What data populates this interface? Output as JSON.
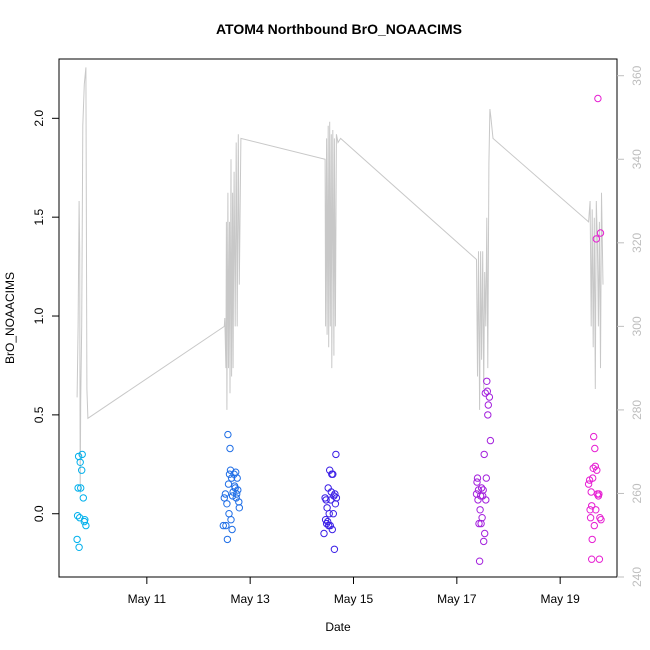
{
  "chart_data": {
    "type": "scatter",
    "title": "ATOM4 Northbound BrO_NOAACIMS",
    "xlabel": "Date",
    "ylabel": "BrO_NOAACIMS",
    "x_unit": "days since May 0 (May 10 = 10.0)",
    "xlim": [
      9.3,
      20.1
    ],
    "ylim": [
      -0.32,
      2.3
    ],
    "y2lim": [
      240,
      364
    ],
    "x_ticks": [
      {
        "value": 11,
        "label": "May 11"
      },
      {
        "value": 13,
        "label": "May 13"
      },
      {
        "value": 15,
        "label": "May 15"
      },
      {
        "value": 17,
        "label": "May 17"
      },
      {
        "value": 19,
        "label": "May 19"
      }
    ],
    "y_ticks": [
      {
        "value": 0.0,
        "label": "0.0"
      },
      {
        "value": 0.5,
        "label": "0.5"
      },
      {
        "value": 1.0,
        "label": "1.0"
      },
      {
        "value": 1.5,
        "label": "1.5"
      },
      {
        "value": 2.0,
        "label": "2.0"
      }
    ],
    "y2_ticks": [
      {
        "value": 240,
        "label": "240"
      },
      {
        "value": 260,
        "label": "260"
      },
      {
        "value": 280,
        "label": "280"
      },
      {
        "value": 300,
        "label": "300"
      },
      {
        "value": 320,
        "label": "320"
      },
      {
        "value": 340,
        "label": "340"
      },
      {
        "value": 360,
        "label": "360"
      }
    ],
    "colors": {
      "series_line": "#c8c8c8",
      "right_axis": "#bebebe",
      "axis": "#000000"
    },
    "series": [
      {
        "name": "BrO_NOAACIMS",
        "axis": "left",
        "style": "points",
        "points": [
          {
            "x": 9.65,
            "y": -0.13,
            "color": "#00b0ec"
          },
          {
            "x": 9.66,
            "y": -0.01,
            "color": "#00b0ec"
          },
          {
            "x": 9.67,
            "y": 0.13,
            "color": "#00b0ec"
          },
          {
            "x": 9.68,
            "y": 0.29,
            "color": "#00b0ec"
          },
          {
            "x": 9.69,
            "y": -0.17,
            "color": "#00b0ec"
          },
          {
            "x": 9.7,
            "y": -0.02,
            "color": "#00b0ec"
          },
          {
            "x": 9.71,
            "y": 0.26,
            "color": "#00b0ec"
          },
          {
            "x": 9.72,
            "y": 0.13,
            "color": "#00b0ec"
          },
          {
            "x": 9.74,
            "y": 0.22,
            "color": "#00b0ec"
          },
          {
            "x": 9.75,
            "y": 0.3,
            "color": "#00b0ec"
          },
          {
            "x": 9.77,
            "y": 0.08,
            "color": "#00b0ec"
          },
          {
            "x": 9.79,
            "y": -0.04,
            "color": "#00b0ec"
          },
          {
            "x": 9.8,
            "y": -0.03,
            "color": "#00b0ec"
          },
          {
            "x": 9.82,
            "y": -0.06,
            "color": "#00b0ec"
          },
          {
            "x": 12.48,
            "y": -0.06,
            "color": "#1f6ee6"
          },
          {
            "x": 12.5,
            "y": 0.08,
            "color": "#1f6ee6"
          },
          {
            "x": 12.52,
            "y": 0.1,
            "color": "#1f6ee6"
          },
          {
            "x": 12.53,
            "y": -0.06,
            "color": "#1f6ee6"
          },
          {
            "x": 12.55,
            "y": 0.05,
            "color": "#1f6ee6"
          },
          {
            "x": 12.56,
            "y": -0.13,
            "color": "#1f6ee6"
          },
          {
            "x": 12.57,
            "y": 0.4,
            "color": "#1f6ee6"
          },
          {
            "x": 12.58,
            "y": 0.15,
            "color": "#1f6ee6"
          },
          {
            "x": 12.59,
            "y": 0.0,
            "color": "#1f6ee6"
          },
          {
            "x": 12.6,
            "y": 0.2,
            "color": "#1f6ee6"
          },
          {
            "x": 12.61,
            "y": 0.33,
            "color": "#1f6ee6"
          },
          {
            "x": 12.62,
            "y": 0.22,
            "color": "#1f6ee6"
          },
          {
            "x": 12.63,
            "y": -0.03,
            "color": "#1f6ee6"
          },
          {
            "x": 12.64,
            "y": 0.18,
            "color": "#1f6ee6"
          },
          {
            "x": 12.65,
            "y": -0.08,
            "color": "#1f6ee6"
          },
          {
            "x": 12.66,
            "y": 0.09,
            "color": "#1f6ee6"
          },
          {
            "x": 12.67,
            "y": 0.11,
            "color": "#1f6ee6"
          },
          {
            "x": 12.69,
            "y": 0.2,
            "color": "#1f6ee6"
          },
          {
            "x": 12.7,
            "y": 0.14,
            "color": "#1f6ee6"
          },
          {
            "x": 12.71,
            "y": 0.13,
            "color": "#1f6ee6"
          },
          {
            "x": 12.72,
            "y": 0.21,
            "color": "#1f6ee6"
          },
          {
            "x": 12.73,
            "y": 0.08,
            "color": "#1f6ee6"
          },
          {
            "x": 12.74,
            "y": 0.1,
            "color": "#1f6ee6"
          },
          {
            "x": 12.75,
            "y": 0.18,
            "color": "#1f6ee6"
          },
          {
            "x": 12.76,
            "y": 0.12,
            "color": "#1f6ee6"
          },
          {
            "x": 12.78,
            "y": 0.06,
            "color": "#1f6ee6"
          },
          {
            "x": 12.79,
            "y": 0.03,
            "color": "#1f6ee6"
          },
          {
            "x": 14.43,
            "y": -0.1,
            "color": "#3a1ee6"
          },
          {
            "x": 14.45,
            "y": 0.08,
            "color": "#3a1ee6"
          },
          {
            "x": 14.46,
            "y": -0.03,
            "color": "#3a1ee6"
          },
          {
            "x": 14.47,
            "y": 0.07,
            "color": "#3a1ee6"
          },
          {
            "x": 14.48,
            "y": -0.05,
            "color": "#3a1ee6"
          },
          {
            "x": 14.49,
            "y": 0.03,
            "color": "#3a1ee6"
          },
          {
            "x": 14.5,
            "y": -0.04,
            "color": "#3a1ee6"
          },
          {
            "x": 14.51,
            "y": 0.13,
            "color": "#3a1ee6"
          },
          {
            "x": 14.52,
            "y": -0.06,
            "color": "#3a1ee6"
          },
          {
            "x": 14.53,
            "y": 0.0,
            "color": "#3a1ee6"
          },
          {
            "x": 14.54,
            "y": 0.22,
            "color": "#3a1ee6"
          },
          {
            "x": 14.55,
            "y": -0.06,
            "color": "#3a1ee6"
          },
          {
            "x": 14.56,
            "y": 0.07,
            "color": "#3a1ee6"
          },
          {
            "x": 14.57,
            "y": 0.11,
            "color": "#3a1ee6"
          },
          {
            "x": 14.58,
            "y": 0.2,
            "color": "#3a1ee6"
          },
          {
            "x": 14.59,
            "y": -0.08,
            "color": "#3a1ee6"
          },
          {
            "x": 14.6,
            "y": 0.2,
            "color": "#3a1ee6"
          },
          {
            "x": 14.61,
            "y": 0.0,
            "color": "#3a1ee6"
          },
          {
            "x": 14.62,
            "y": 0.09,
            "color": "#3a1ee6"
          },
          {
            "x": 14.63,
            "y": -0.18,
            "color": "#3a1ee6"
          },
          {
            "x": 14.64,
            "y": 0.1,
            "color": "#3a1ee6"
          },
          {
            "x": 14.65,
            "y": 0.05,
            "color": "#3a1ee6"
          },
          {
            "x": 14.66,
            "y": 0.3,
            "color": "#3a1ee6"
          },
          {
            "x": 14.67,
            "y": 0.08,
            "color": "#3a1ee6"
          },
          {
            "x": 17.38,
            "y": 0.1,
            "color": "#a320dd"
          },
          {
            "x": 17.39,
            "y": 0.16,
            "color": "#a320dd"
          },
          {
            "x": 17.4,
            "y": 0.18,
            "color": "#a320dd"
          },
          {
            "x": 17.41,
            "y": 0.07,
            "color": "#a320dd"
          },
          {
            "x": 17.42,
            "y": 0.12,
            "color": "#a320dd"
          },
          {
            "x": 17.43,
            "y": -0.05,
            "color": "#a320dd"
          },
          {
            "x": 17.44,
            "y": -0.24,
            "color": "#a320dd"
          },
          {
            "x": 17.45,
            "y": 0.02,
            "color": "#a320dd"
          },
          {
            "x": 17.46,
            "y": 0.09,
            "color": "#a320dd"
          },
          {
            "x": 17.47,
            "y": -0.05,
            "color": "#a320dd"
          },
          {
            "x": 17.48,
            "y": 0.13,
            "color": "#a320dd"
          },
          {
            "x": 17.49,
            "y": -0.02,
            "color": "#a320dd"
          },
          {
            "x": 17.5,
            "y": 0.09,
            "color": "#a320dd"
          },
          {
            "x": 17.51,
            "y": 0.12,
            "color": "#a320dd"
          },
          {
            "x": 17.52,
            "y": -0.14,
            "color": "#a320dd"
          },
          {
            "x": 17.53,
            "y": 0.3,
            "color": "#a320dd"
          },
          {
            "x": 17.54,
            "y": -0.1,
            "color": "#a320dd"
          },
          {
            "x": 17.55,
            "y": 0.61,
            "color": "#a320dd"
          },
          {
            "x": 17.56,
            "y": 0.07,
            "color": "#a320dd"
          },
          {
            "x": 17.57,
            "y": 0.18,
            "color": "#a320dd"
          },
          {
            "x": 17.58,
            "y": 0.67,
            "color": "#a320dd"
          },
          {
            "x": 17.59,
            "y": 0.62,
            "color": "#a320dd"
          },
          {
            "x": 17.6,
            "y": 0.5,
            "color": "#a320dd"
          },
          {
            "x": 17.61,
            "y": 0.55,
            "color": "#a320dd"
          },
          {
            "x": 17.63,
            "y": 0.59,
            "color": "#a320dd"
          },
          {
            "x": 17.65,
            "y": 0.37,
            "color": "#a320dd"
          },
          {
            "x": 19.55,
            "y": 0.15,
            "color": "#e61ed2"
          },
          {
            "x": 19.57,
            "y": 0.17,
            "color": "#e61ed2"
          },
          {
            "x": 19.58,
            "y": 0.02,
            "color": "#e61ed2"
          },
          {
            "x": 19.59,
            "y": -0.02,
            "color": "#e61ed2"
          },
          {
            "x": 19.6,
            "y": 0.11,
            "color": "#e61ed2"
          },
          {
            "x": 19.61,
            "y": 0.04,
            "color": "#e61ed2"
          },
          {
            "x": 19.62,
            "y": -0.13,
            "color": "#e61ed2"
          },
          {
            "x": 19.63,
            "y": 0.18,
            "color": "#e61ed2"
          },
          {
            "x": 19.64,
            "y": 0.23,
            "color": "#e61ed2"
          },
          {
            "x": 19.65,
            "y": 0.39,
            "color": "#e61ed2"
          },
          {
            "x": 19.66,
            "y": -0.06,
            "color": "#e61ed2"
          },
          {
            "x": 19.67,
            "y": 0.33,
            "color": "#e61ed2"
          },
          {
            "x": 19.68,
            "y": 0.24,
            "color": "#e61ed2"
          },
          {
            "x": 19.69,
            "y": 0.02,
            "color": "#e61ed2"
          },
          {
            "x": 19.7,
            "y": 1.39,
            "color": "#e61ed2"
          },
          {
            "x": 19.71,
            "y": 0.22,
            "color": "#e61ed2"
          },
          {
            "x": 19.72,
            "y": 0.1,
            "color": "#e61ed2"
          },
          {
            "x": 19.73,
            "y": 2.1,
            "color": "#e61ed2"
          },
          {
            "x": 19.74,
            "y": 0.09,
            "color": "#e61ed2"
          },
          {
            "x": 19.75,
            "y": 0.1,
            "color": "#e61ed2"
          },
          {
            "x": 19.76,
            "y": -0.23,
            "color": "#e61ed2"
          },
          {
            "x": 19.77,
            "y": -0.02,
            "color": "#e61ed2"
          },
          {
            "x": 19.78,
            "y": 1.42,
            "color": "#e61ed2"
          },
          {
            "x": 19.79,
            "y": -0.03,
            "color": "#e61ed2"
          },
          {
            "x": 19.61,
            "y": -0.23,
            "color": "#e61ed2"
          }
        ]
      },
      {
        "name": "right-axis line",
        "axis": "right",
        "style": "line",
        "x": [
          9.65,
          9.67,
          9.69,
          9.7,
          9.71,
          9.72,
          9.74,
          9.76,
          9.79,
          9.82,
          9.84,
          9.86,
          12.5,
          12.51,
          12.53,
          12.54,
          12.55,
          12.57,
          12.58,
          12.6,
          12.61,
          12.63,
          12.64,
          12.66,
          12.67,
          12.69,
          12.71,
          12.73,
          12.75,
          12.77,
          12.79,
          12.82,
          14.45,
          14.46,
          14.48,
          14.49,
          14.51,
          14.52,
          14.54,
          14.55,
          14.57,
          14.58,
          14.6,
          14.62,
          14.63,
          14.65,
          14.67,
          14.7,
          14.75,
          17.38,
          17.4,
          17.42,
          17.44,
          17.46,
          17.48,
          17.5,
          17.52,
          17.54,
          17.56,
          17.58,
          17.6,
          17.62,
          17.64,
          17.66,
          17.7,
          19.55,
          19.58,
          19.6,
          19.62,
          19.64,
          19.66,
          19.68,
          19.7,
          19.72,
          19.74,
          19.76,
          19.78,
          19.8,
          19.83
        ],
        "y": [
          283,
          300,
          330,
          318,
          260,
          282,
          300,
          348,
          358,
          362,
          285,
          278,
          300,
          302,
          290,
          325,
          280,
          332,
          290,
          325,
          284,
          340,
          288,
          332,
          290,
          337,
          300,
          344,
          300,
          346,
          310,
          345,
          340,
          300,
          345,
          298,
          348,
          295,
          349,
          300,
          346,
          290,
          347,
          293,
          345,
          300,
          346,
          344,
          345,
          316,
          288,
          318,
          280,
          318,
          292,
          318,
          285,
          313,
          300,
          326,
          290,
          339,
          352,
          350,
          345,
          325,
          330,
          300,
          328,
          295,
          326,
          285,
          330,
          320,
          300,
          325,
          290,
          332,
          310
        ]
      }
    ]
  }
}
